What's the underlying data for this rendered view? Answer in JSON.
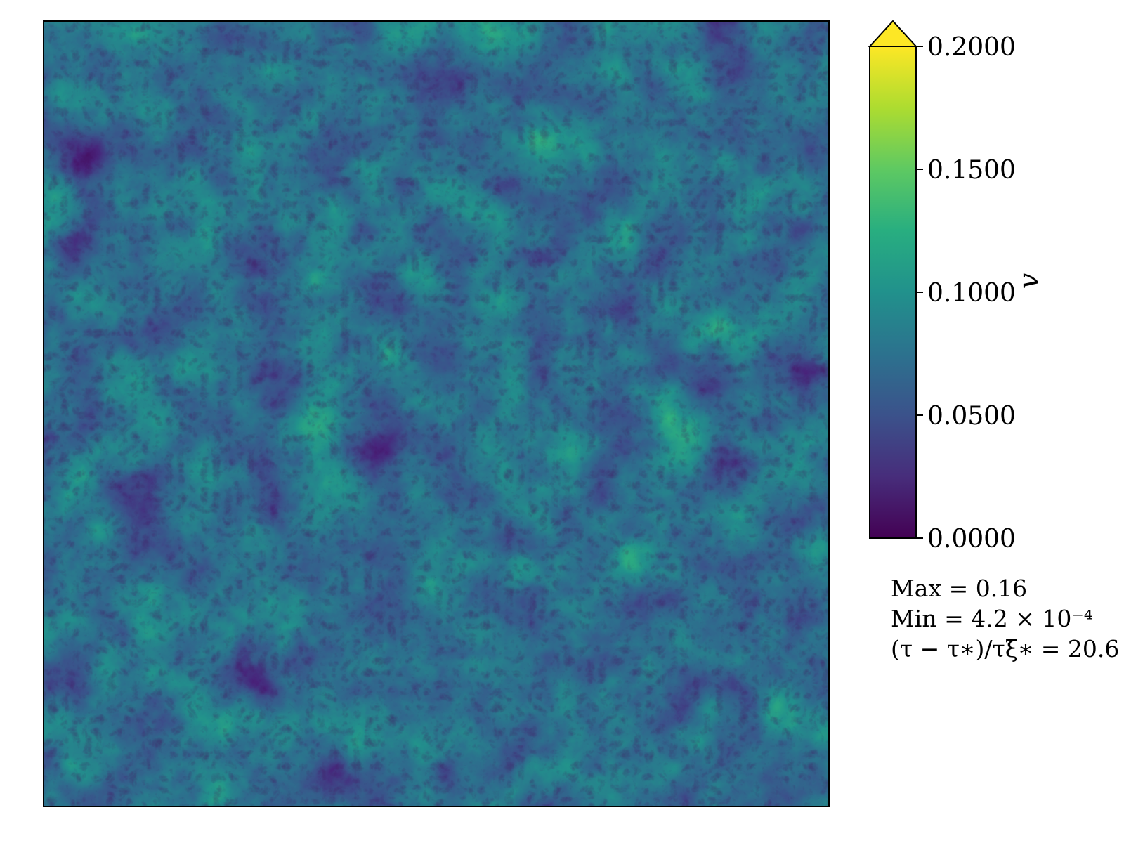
{
  "chart_data": {
    "type": "heatmap",
    "title": "",
    "xlabel": "",
    "ylabel": "",
    "colormap": "viridis",
    "colorbar": {
      "label": "v",
      "range": [
        0.0,
        0.2
      ],
      "extend": "max",
      "ticks": [
        {
          "value": 0.0,
          "label": "0.0000"
        },
        {
          "value": 0.05,
          "label": "0.0500"
        },
        {
          "value": 0.1,
          "label": "0.1000"
        },
        {
          "value": 0.15,
          "label": "0.1500"
        },
        {
          "value": 0.2,
          "label": "0.2000"
        }
      ]
    },
    "field_stats": {
      "max": 0.16,
      "min": 0.00042
    },
    "annotations": [
      "Max = 0.16",
      "Min = 4.2 × 10⁻⁴",
      "(τ − τ∗)/τξ∗ = 20.6"
    ],
    "colors": {
      "viridis_0": "#440154",
      "viridis_25": "#3b528b",
      "viridis_50": "#21918c",
      "viridis_75": "#5ec962",
      "viridis_100": "#fde725"
    }
  }
}
